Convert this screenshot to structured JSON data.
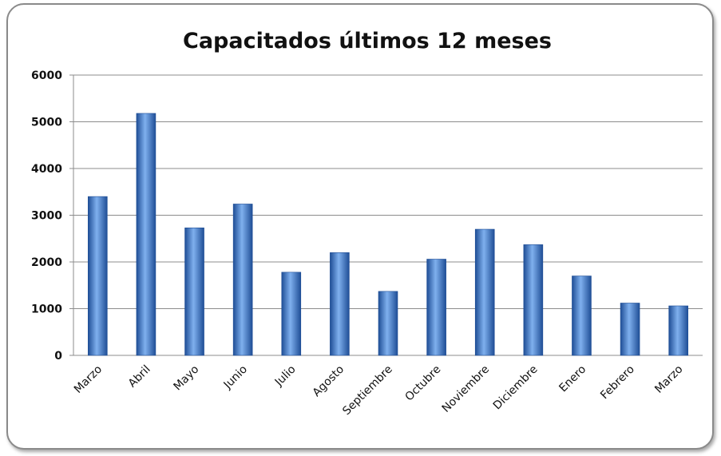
{
  "chart_data": {
    "type": "bar",
    "title": "Capacitados últimos  12 meses",
    "xlabel": "",
    "ylabel": "",
    "categories": [
      "Marzo",
      "Abril",
      "Mayo",
      "Junio",
      "Julio",
      "Agosto",
      "Septiembre",
      "Octubre",
      "Noviembre",
      "Diciembre",
      "Enero",
      "Febrero",
      "Marzo"
    ],
    "values": [
      3400,
      5180,
      2730,
      3240,
      1780,
      2200,
      1370,
      2060,
      2700,
      2370,
      1700,
      1120,
      1060
    ],
    "ylim": [
      0,
      6000
    ],
    "y_ticks": [
      "0",
      "1000",
      "2000",
      "3000",
      "4000",
      "5000",
      "6000"
    ],
    "y_tick_values": [
      0,
      1000,
      2000,
      3000,
      4000,
      5000,
      6000
    ],
    "grid": true,
    "legend": "none",
    "bar_color": "#3a73c4",
    "bar_color_dark": "#1f4e96",
    "bar_color_light": "#7fb0ee",
    "grid_color": "#8c8c8c"
  }
}
